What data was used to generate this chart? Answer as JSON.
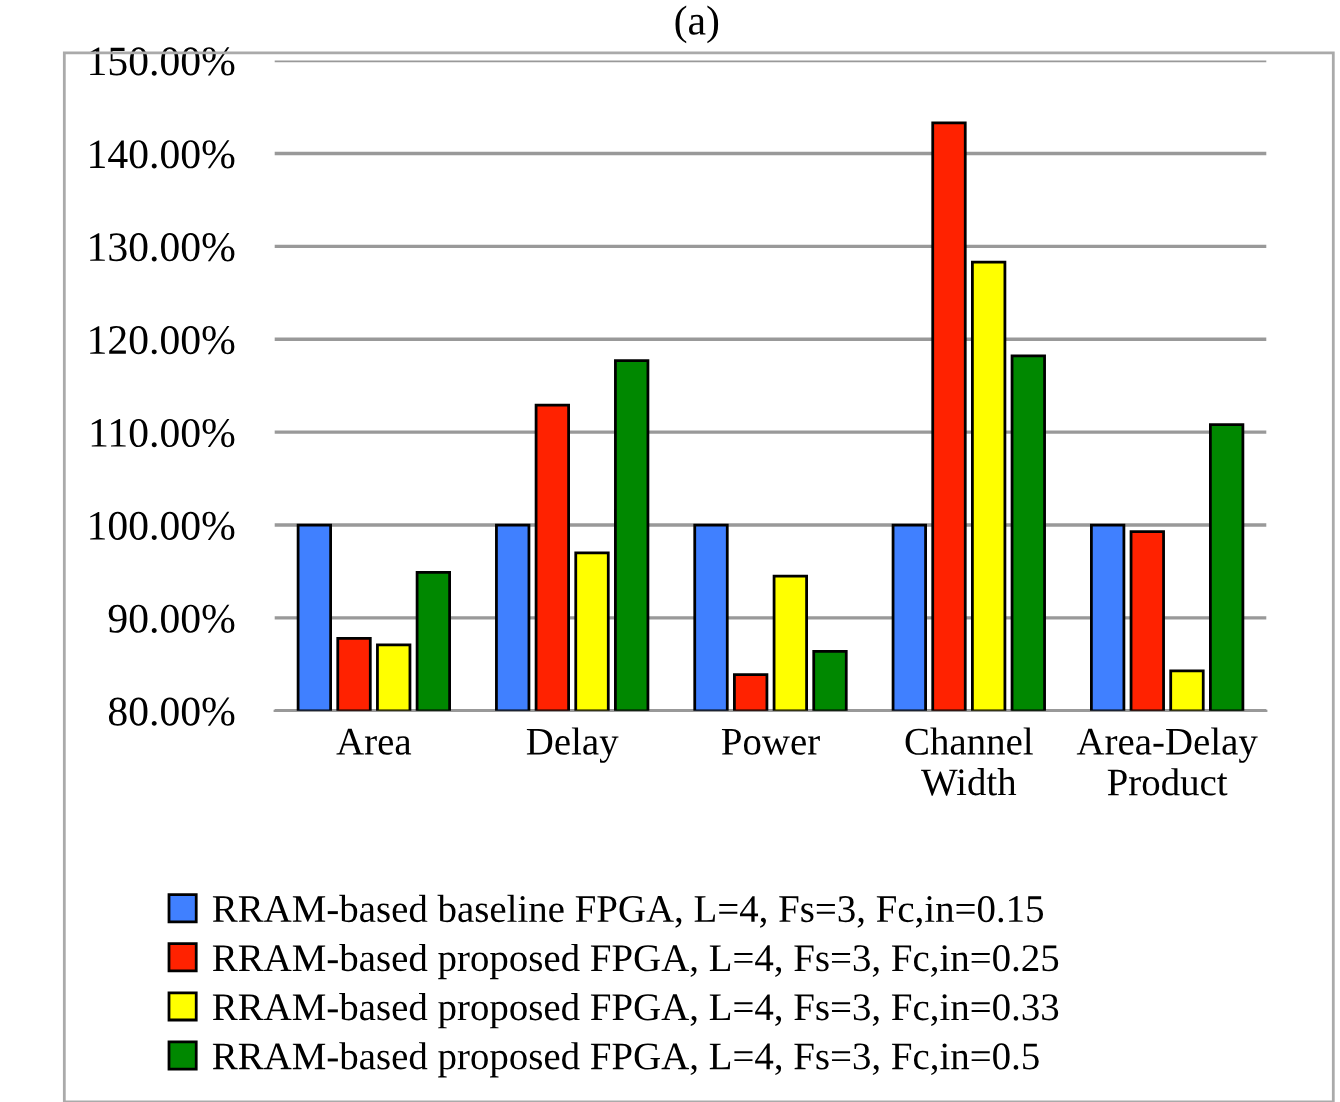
{
  "chart_data": {
    "type": "bar",
    "title": "(a)",
    "categories": [
      "Area",
      "Delay",
      "Power",
      "Channel\nWidth",
      "Area-Delay\nProduct"
    ],
    "series": [
      {
        "name": "RRAM-based baseline FPGA, L=4, Fs=3, Fc,in=0.15",
        "color": "#4080ff",
        "values": [
          100,
          100,
          100,
          100,
          100
        ]
      },
      {
        "name": "RRAM-based proposed FPGA, L=4, Fs=3, Fc,in=0.25",
        "color": "#ff2200",
        "values": [
          87.8,
          112.9,
          83.9,
          143.3,
          99.3
        ]
      },
      {
        "name": "RRAM-based proposed FPGA, L=4, Fs=3, Fc,in=0.33",
        "color": "#ffff00",
        "values": [
          87.1,
          97.0,
          94.5,
          128.3,
          84.3
        ]
      },
      {
        "name": "RRAM-based proposed FPGA, L=4, Fs=3, Fc,in=0.5",
        "color": "#008800",
        "values": [
          94.9,
          117.7,
          86.4,
          118.2,
          110.8
        ]
      }
    ],
    "ylim": [
      80,
      150
    ],
    "yticks": [
      {
        "value": 80,
        "label": "80.00%"
      },
      {
        "value": 90,
        "label": "90.00%"
      },
      {
        "value": 100,
        "label": "100.00%"
      },
      {
        "value": 110,
        "label": "110.00%"
      },
      {
        "value": 120,
        "label": "120.00%"
      },
      {
        "value": 130,
        "label": "130.00%"
      },
      {
        "value": 140,
        "label": "140.00%"
      },
      {
        "value": 150,
        "label": "150.00%"
      }
    ],
    "grid": "y",
    "legend": "bottom"
  }
}
